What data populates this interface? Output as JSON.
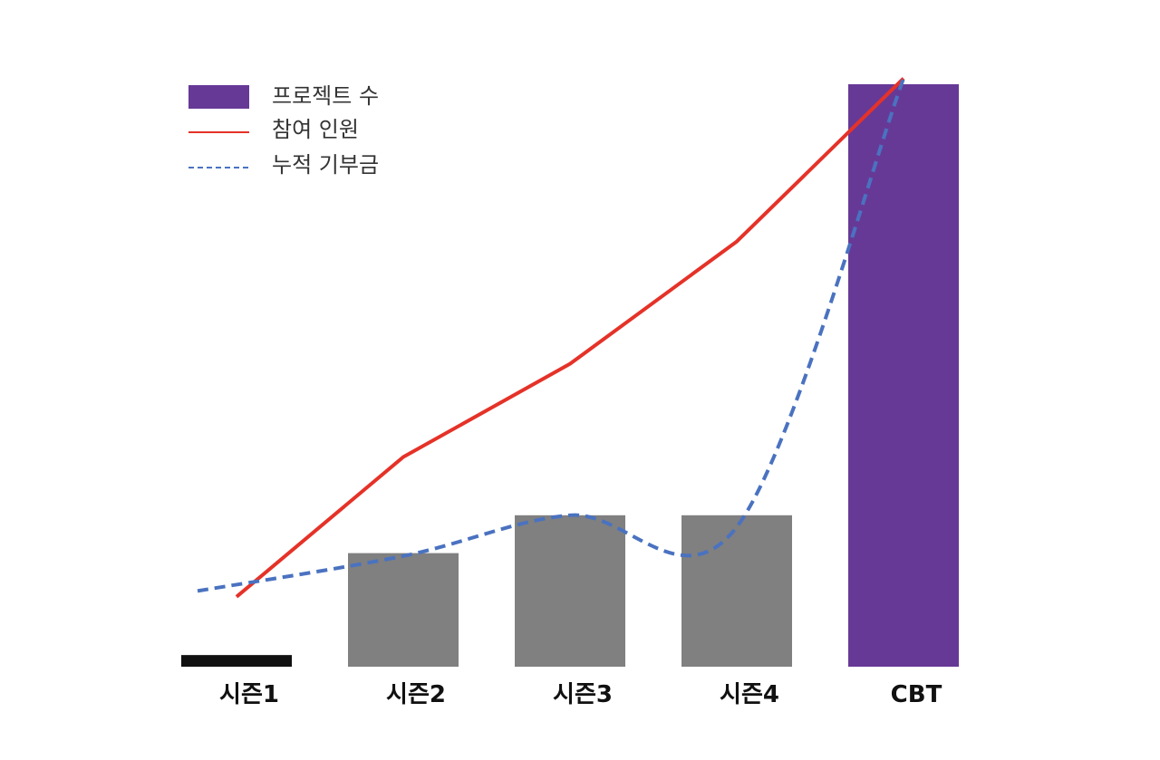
{
  "chart_data": {
    "type": "bar",
    "categories": [
      "시즌1",
      "시즌2",
      "시즌3",
      "시즌4",
      "CBT"
    ],
    "ylim": [
      0,
      100
    ],
    "grid": false,
    "legend_position": "top-left",
    "series": [
      {
        "name": "프로젝트 수",
        "type": "bar",
        "values": [
          2,
          19.5,
          26,
          26,
          100
        ],
        "colors": [
          "#111111",
          "#808080",
          "#808080",
          "#808080",
          "#673997"
        ]
      },
      {
        "name": "참여 인원",
        "type": "line",
        "style": "solid",
        "color": "#e53228",
        "values": [
          12,
          36,
          52,
          73,
          101
        ]
      },
      {
        "name": "누적 기부금",
        "type": "line",
        "style": "dashed",
        "color": "#4a72c0",
        "values": [
          13,
          19,
          26,
          24,
          101
        ]
      }
    ]
  }
}
